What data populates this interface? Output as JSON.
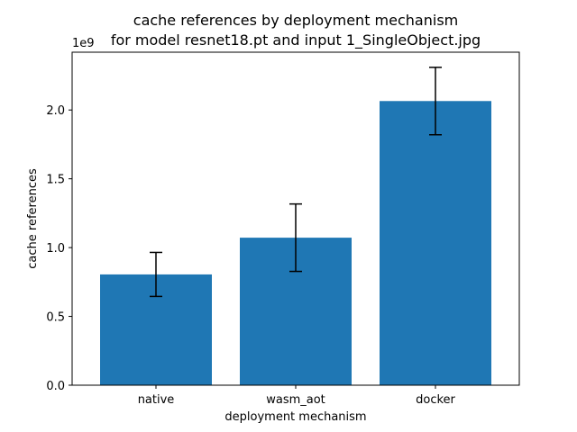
{
  "chart_data": {
    "type": "bar",
    "title_lines": [
      "cache references by deployment mechanism",
      "for model resnet18.pt and input 1_SingleObject.jpg"
    ],
    "xlabel": "deployment mechanism",
    "ylabel": "cache references",
    "y_offset_label": "1e9",
    "categories": [
      "native",
      "wasm_aot",
      "docker"
    ],
    "values": [
      0.805,
      1.072,
      2.065
    ],
    "error": [
      0.16,
      0.245,
      0.245
    ],
    "unit_multiplier": 1000000000,
    "ylim": [
      0,
      2.42
    ],
    "yticks": [
      0.0,
      0.5,
      1.0,
      1.5,
      2.0
    ],
    "ytick_labels": [
      "0.0",
      "0.5",
      "1.0",
      "1.5",
      "2.0"
    ],
    "bar_color": "#1f77b4",
    "grid": false
  }
}
